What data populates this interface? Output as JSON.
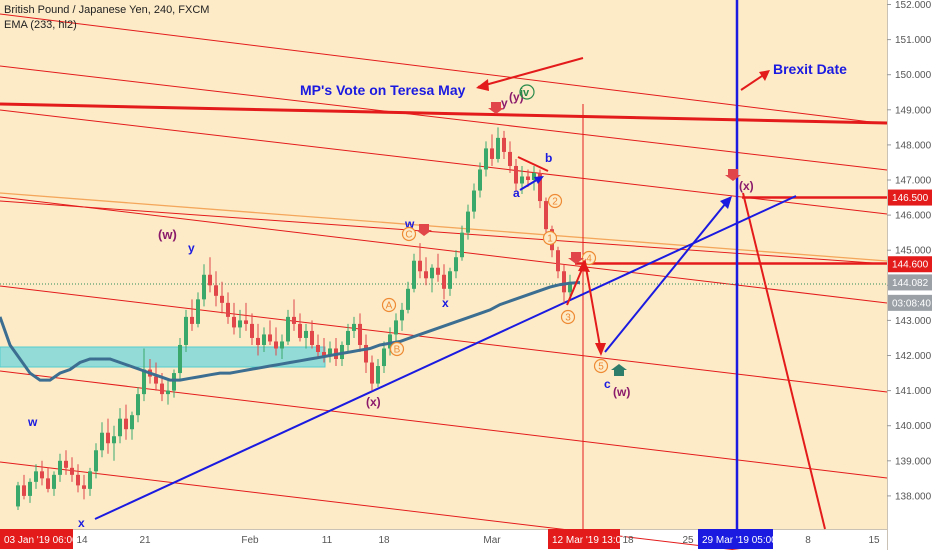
{
  "header": {
    "symbol_line": "British Pound / Japanese Yen, 240, FXCM",
    "indicator_line": "EMA (233, hl2)"
  },
  "colors": {
    "background": "#fdebc8",
    "up_candle": "#3aa86b",
    "down_candle": "#e0464a",
    "ema": "#3c6e91",
    "channel": "#e31b1b",
    "trend": "#1a1ae0",
    "rect": "#7fd8d8"
  },
  "chart_data": {
    "type": "candlestick",
    "title": "British Pound / Japanese Yen, 240, FXCM",
    "ylim": [
      137.5,
      152.1
    ],
    "yticks": [
      138,
      139,
      140,
      141,
      142,
      143,
      144,
      145,
      146,
      147,
      148,
      149,
      150,
      151,
      152
    ],
    "ytick_labels": [
      "138.000",
      "139.000",
      "140.000",
      "141.000",
      "142.000",
      "143.000",
      "144.000",
      "145.000",
      "146.000",
      "147.000",
      "148.000",
      "149.000",
      "150.000",
      "151.000",
      "152.000"
    ],
    "xticks": [
      {
        "label": "03 Jan '19  06:00",
        "boxed": true
      },
      {
        "label": "14"
      },
      {
        "label": "21"
      },
      {
        "label": "Feb"
      },
      {
        "label": "11"
      },
      {
        "label": "18"
      },
      {
        "label": "Mar"
      },
      {
        "label": "12 Mar '19  13:00",
        "boxed": true
      },
      {
        "label": "18"
      },
      {
        "label": "25"
      },
      {
        "label": "29 Mar '19  05:00",
        "boxed": true,
        "blue": true
      },
      {
        "label": "8"
      },
      {
        "label": "15"
      }
    ],
    "price_labels": [
      {
        "value": 146.5,
        "text": "146.500",
        "style": "red"
      },
      {
        "value": 144.6,
        "text": "144.600",
        "style": "red"
      },
      {
        "value": 144.082,
        "text": "144.082",
        "style": "gray"
      },
      {
        "value": 143.5,
        "text": "03:08:40",
        "style": "gray"
      }
    ],
    "annotations": {
      "mp_vote": "MP's Vote on Teresa May",
      "brexit": "Brexit Date",
      "waves": [
        "(w)",
        "y",
        "w",
        "x",
        "(x)",
        "w",
        "x",
        "y",
        "(y)",
        "iv",
        "a",
        "b",
        "c",
        "(w)",
        "(x)"
      ],
      "circled": [
        "C",
        "A",
        "B",
        "1",
        "2",
        "3",
        "4",
        "5"
      ]
    },
    "candles": [
      [
        137.7,
        138.4,
        137.6,
        138.3
      ],
      [
        138.3,
        138.6,
        137.9,
        138.0
      ],
      [
        138.0,
        138.5,
        137.8,
        138.4
      ],
      [
        138.4,
        138.9,
        138.2,
        138.7
      ],
      [
        138.7,
        139.0,
        138.3,
        138.5
      ],
      [
        138.5,
        138.8,
        138.1,
        138.2
      ],
      [
        138.2,
        138.7,
        138.0,
        138.6
      ],
      [
        138.6,
        139.2,
        138.4,
        139.0
      ],
      [
        139.0,
        139.3,
        138.6,
        138.8
      ],
      [
        138.8,
        139.1,
        138.4,
        138.6
      ],
      [
        138.6,
        138.9,
        138.1,
        138.3
      ],
      [
        138.3,
        138.6,
        137.9,
        138.2
      ],
      [
        138.2,
        138.8,
        138.0,
        138.7
      ],
      [
        138.7,
        139.5,
        138.5,
        139.3
      ],
      [
        139.3,
        140.1,
        139.1,
        139.8
      ],
      [
        139.8,
        140.2,
        139.2,
        139.5
      ],
      [
        139.5,
        140.0,
        139.0,
        139.7
      ],
      [
        139.7,
        140.5,
        139.5,
        140.2
      ],
      [
        140.2,
        140.6,
        139.6,
        139.9
      ],
      [
        139.9,
        140.4,
        139.6,
        140.3
      ],
      [
        140.3,
        141.1,
        140.1,
        140.9
      ],
      [
        140.9,
        142.2,
        140.7,
        141.6
      ],
      [
        141.6,
        141.9,
        141.2,
        141.4
      ],
      [
        141.4,
        141.8,
        141.0,
        141.2
      ],
      [
        141.2,
        141.5,
        140.7,
        140.9
      ],
      [
        140.9,
        141.3,
        140.6,
        141.0
      ],
      [
        141.0,
        141.6,
        140.8,
        141.5
      ],
      [
        141.5,
        142.5,
        141.3,
        142.3
      ],
      [
        142.3,
        143.3,
        142.1,
        143.1
      ],
      [
        143.1,
        143.6,
        142.7,
        142.9
      ],
      [
        142.9,
        143.8,
        142.8,
        143.6
      ],
      [
        143.6,
        144.6,
        143.4,
        144.3
      ],
      [
        144.3,
        144.8,
        143.8,
        144.0
      ],
      [
        144.0,
        144.4,
        143.4,
        143.7
      ],
      [
        143.7,
        144.1,
        143.2,
        143.5
      ],
      [
        143.5,
        143.8,
        142.9,
        143.1
      ],
      [
        143.1,
        143.5,
        142.6,
        142.8
      ],
      [
        142.8,
        143.3,
        142.5,
        143.0
      ],
      [
        143.0,
        143.5,
        142.7,
        142.9
      ],
      [
        142.9,
        143.2,
        142.3,
        142.5
      ],
      [
        142.5,
        142.9,
        142.0,
        142.3
      ],
      [
        142.3,
        142.8,
        142.1,
        142.6
      ],
      [
        142.6,
        143.0,
        142.3,
        142.4
      ],
      [
        142.4,
        142.8,
        142.0,
        142.2
      ],
      [
        142.2,
        142.6,
        141.9,
        142.4
      ],
      [
        142.4,
        143.3,
        142.3,
        143.1
      ],
      [
        143.1,
        143.6,
        142.7,
        142.9
      ],
      [
        142.9,
        143.2,
        142.4,
        142.5
      ],
      [
        142.5,
        142.9,
        142.2,
        142.7
      ],
      [
        142.7,
        143.0,
        142.2,
        142.3
      ],
      [
        142.3,
        142.6,
        141.9,
        142.1
      ],
      [
        142.1,
        142.5,
        141.8,
        142.0
      ],
      [
        142.0,
        142.4,
        141.8,
        142.2
      ],
      [
        142.2,
        142.5,
        141.7,
        141.9
      ],
      [
        141.9,
        142.4,
        141.7,
        142.3
      ],
      [
        142.3,
        142.9,
        142.1,
        142.7
      ],
      [
        142.7,
        143.1,
        142.5,
        142.9
      ],
      [
        142.9,
        143.2,
        142.1,
        142.3
      ],
      [
        142.3,
        142.6,
        141.5,
        141.8
      ],
      [
        141.8,
        142.0,
        141.0,
        141.2
      ],
      [
        141.2,
        141.9,
        141.1,
        141.7
      ],
      [
        141.7,
        142.4,
        141.5,
        142.2
      ],
      [
        142.2,
        142.8,
        142.0,
        142.6
      ],
      [
        142.6,
        143.2,
        142.4,
        143.0
      ],
      [
        143.0,
        143.5,
        142.7,
        143.3
      ],
      [
        143.3,
        144.1,
        143.2,
        143.9
      ],
      [
        143.9,
        144.9,
        143.8,
        144.7
      ],
      [
        144.7,
        145.2,
        144.2,
        144.4
      ],
      [
        144.4,
        144.8,
        144.0,
        144.2
      ],
      [
        144.2,
        144.6,
        143.8,
        144.5
      ],
      [
        144.5,
        144.9,
        144.1,
        144.3
      ],
      [
        144.3,
        144.6,
        143.6,
        143.9
      ],
      [
        143.9,
        144.5,
        143.7,
        144.4
      ],
      [
        144.4,
        145.0,
        144.2,
        144.8
      ],
      [
        144.8,
        145.7,
        144.7,
        145.5
      ],
      [
        145.5,
        146.3,
        145.3,
        146.1
      ],
      [
        146.1,
        146.9,
        145.9,
        146.7
      ],
      [
        146.7,
        147.5,
        146.5,
        147.3
      ],
      [
        147.3,
        148.1,
        147.1,
        147.9
      ],
      [
        147.9,
        148.3,
        147.4,
        147.6
      ],
      [
        147.6,
        148.5,
        147.5,
        148.2
      ],
      [
        148.2,
        148.4,
        147.6,
        147.8
      ],
      [
        147.8,
        148.1,
        147.2,
        147.4
      ],
      [
        147.4,
        147.6,
        146.7,
        146.9
      ],
      [
        146.9,
        147.4,
        146.6,
        147.1
      ],
      [
        147.1,
        147.3,
        146.8,
        147.0
      ],
      [
        147.0,
        147.4,
        146.7,
        147.2
      ],
      [
        147.2,
        147.3,
        146.2,
        146.4
      ],
      [
        146.4,
        146.5,
        145.4,
        145.6
      ],
      [
        145.6,
        145.7,
        144.8,
        145.0
      ],
      [
        145.0,
        145.1,
        144.2,
        144.4
      ],
      [
        144.4,
        144.6,
        143.5,
        143.8
      ],
      [
        143.8,
        144.3,
        143.6,
        144.1
      ]
    ],
    "ema": [
      [
        0,
        143.1
      ],
      [
        10,
        142.3
      ],
      [
        20,
        141.9
      ],
      [
        30,
        141.5
      ],
      [
        40,
        141.3
      ],
      [
        50,
        141.3
      ],
      [
        60,
        141.5
      ],
      [
        70,
        141.6
      ],
      [
        80,
        141.8
      ],
      [
        90,
        141.9
      ],
      [
        100,
        141.9
      ],
      [
        110,
        141.9
      ],
      [
        120,
        141.8
      ],
      [
        130,
        141.7
      ],
      [
        140,
        141.6
      ],
      [
        150,
        141.5
      ],
      [
        160,
        141.4
      ],
      [
        170,
        141.3
      ],
      [
        180,
        141.3
      ],
      [
        190,
        141.35
      ],
      [
        200,
        141.4
      ],
      [
        210,
        141.45
      ],
      [
        220,
        141.5
      ],
      [
        230,
        141.5
      ],
      [
        240,
        141.55
      ],
      [
        250,
        141.6
      ],
      [
        260,
        141.65
      ],
      [
        270,
        141.7
      ],
      [
        280,
        141.75
      ],
      [
        290,
        141.8
      ],
      [
        300,
        141.85
      ],
      [
        310,
        141.9
      ],
      [
        320,
        141.95
      ],
      [
        330,
        142.0
      ],
      [
        340,
        142.05
      ],
      [
        350,
        142.1
      ],
      [
        360,
        142.15
      ],
      [
        370,
        142.2
      ],
      [
        380,
        142.3
      ],
      [
        390,
        142.35
      ],
      [
        400,
        142.4
      ],
      [
        410,
        142.5
      ],
      [
        420,
        142.6
      ],
      [
        430,
        142.7
      ],
      [
        440,
        142.8
      ],
      [
        450,
        142.9
      ],
      [
        460,
        143.0
      ],
      [
        470,
        143.1
      ],
      [
        480,
        143.2
      ],
      [
        490,
        143.3
      ],
      [
        500,
        143.45
      ],
      [
        510,
        143.55
      ],
      [
        520,
        143.65
      ],
      [
        530,
        143.75
      ],
      [
        540,
        143.85
      ],
      [
        550,
        143.95
      ],
      [
        560,
        144.02
      ],
      [
        570,
        144.06
      ],
      [
        580,
        144.08
      ]
    ]
  }
}
